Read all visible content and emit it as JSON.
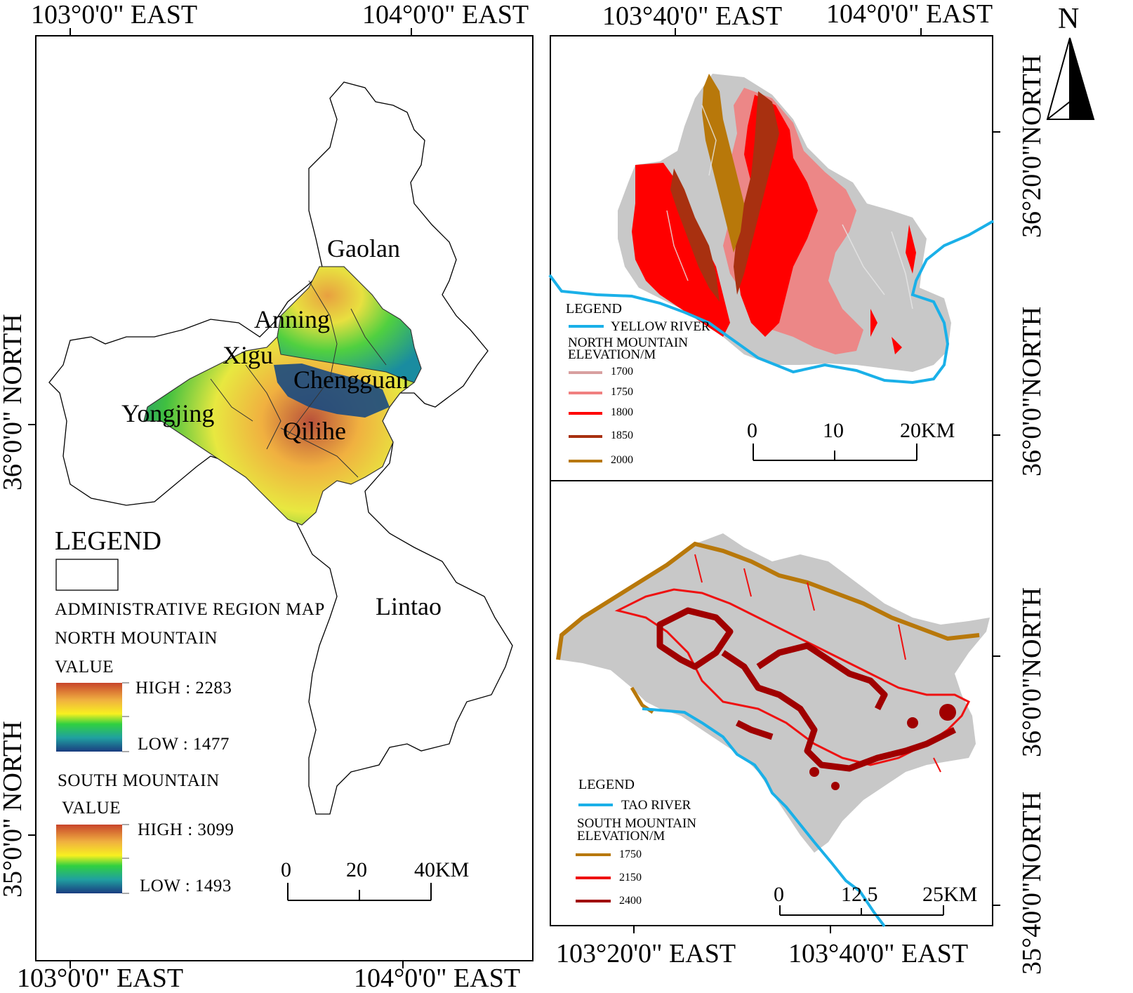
{
  "left_map": {
    "top_labels": [
      "103°0'0\" EAST",
      "104°0'0\" EAST"
    ],
    "bottom_labels": [
      "103°0'0\" EAST",
      "104°0'0\" EAST"
    ],
    "left_labels": [
      "36°0'0\" NORTH",
      "35°0'0\" NORTH"
    ],
    "places": [
      "Gaolan",
      "Anning",
      "Xigu",
      "Chengguan",
      "Yongjing",
      "Qilihe",
      "Lintao"
    ],
    "legend": {
      "title": "LEGEND",
      "admin_label": "ADMINISTRATIVE  REGION  MAP",
      "north_title": "NORTH  MOUNTAIN",
      "north_value": "VALUE",
      "north_high": "HIGH :  2283",
      "north_low": "LOW :  1477",
      "south_title": "SOUTH  MOUNTAIN",
      "south_value": "VALUE",
      "south_high": "HIGH :  3099",
      "south_low": "LOW :  1493"
    },
    "scale": {
      "ticks": [
        "0",
        "20",
        "40KM"
      ]
    }
  },
  "right_top": {
    "top_labels": [
      "103°40'0\" EAST",
      "104°0'0\" EAST"
    ],
    "right_labels": [
      "36°20'0\"NORTH",
      "36°0'0\"NORTH"
    ],
    "legend": {
      "title": "LEGEND",
      "river": "YELLOW RIVER",
      "elev_title_1": "NORTH  MOUNTAIN",
      "elev_title_2": "ELEVATION/M",
      "items": [
        {
          "label": "1700",
          "color": "#d8a0a0"
        },
        {
          "label": "1750",
          "color": "#f08080"
        },
        {
          "label": "1800",
          "color": "#ff0000"
        },
        {
          "label": "1850",
          "color": "#a83010"
        },
        {
          "label": "2000",
          "color": "#b8780a"
        }
      ]
    },
    "scale": {
      "ticks": [
        "0",
        "10",
        "20KM"
      ]
    }
  },
  "right_bottom": {
    "bottom_labels": [
      "103°20'0\" EAST",
      "103°40'0\" EAST"
    ],
    "right_labels": [
      "36°0'0\"NORTH",
      "35°40'0\"NORTH"
    ],
    "legend": {
      "title": "LEGEND",
      "river": "TAO RIVER",
      "elev_title_1": "SOUTH  MOUNTAIN",
      "elev_title_2": "ELEVATION/M",
      "items": [
        {
          "label": "1750",
          "color": "#b8780a"
        },
        {
          "label": "2150",
          "color": "#ee1111"
        },
        {
          "label": "2400",
          "color": "#a00000"
        }
      ]
    },
    "scale": {
      "ticks": [
        "0",
        "12.5",
        "25KM"
      ]
    }
  },
  "north_arrow": {
    "label": "N"
  },
  "colors": {
    "river": "#1ab0e8",
    "relief_gray": "#c8c8c8",
    "frame": "#000000"
  }
}
